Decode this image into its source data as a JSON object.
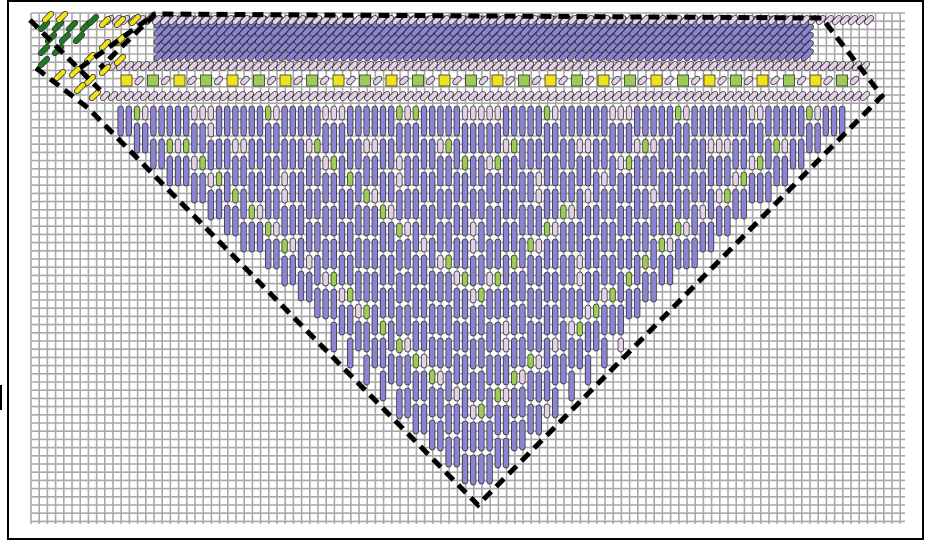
{
  "diagram": {
    "kind": "needlepoint-stitch-chart",
    "canvas_mesh": {
      "color": "#9a9a9a",
      "background": "#ffffff"
    },
    "outline": {
      "style": "dashed",
      "color": "#000000"
    },
    "colors": {
      "lavender_dark": "#8b84d4",
      "lavender_light": "#e3cfe6",
      "lime_green": "#9ccc55",
      "dark_green": "#1e7a1e",
      "yellow": "#f0e31c",
      "stroke": "#333333"
    },
    "sections": [
      "top-band-diagonal-lavender",
      "border-row-checker-yellow-green",
      "inverted-triangle-bargello",
      "corner-green-yellow-diagonals"
    ]
  }
}
